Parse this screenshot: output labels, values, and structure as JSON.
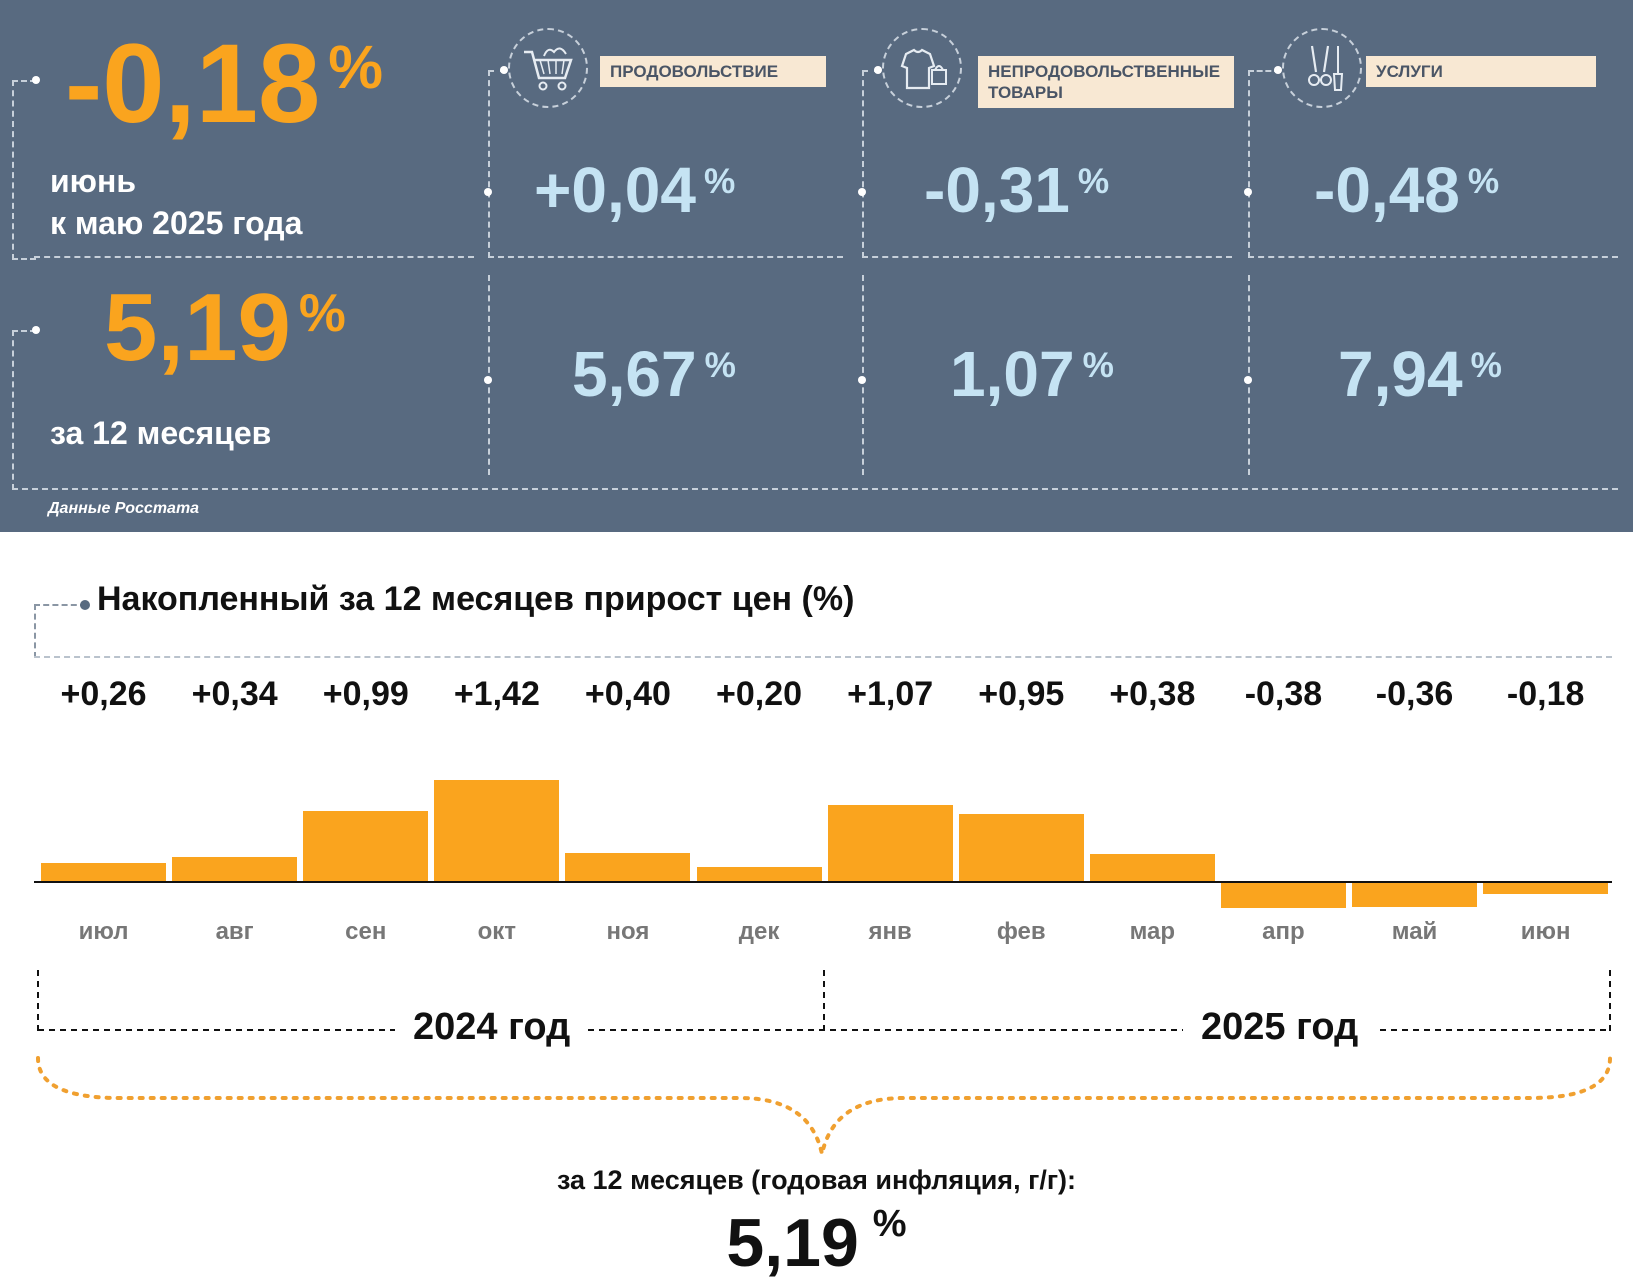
{
  "summary": {
    "monthly": {
      "value": "-0,18",
      "unit": "%",
      "label_line1": "июнь",
      "label_line2": "к маю 2025 года"
    },
    "annual": {
      "value": "5,19",
      "unit": "%",
      "label": "за 12 месяцев"
    },
    "categories": [
      {
        "icon": "shopping-cart-icon",
        "label": "ПРОДОВОЛЬСТВИЕ",
        "monthly": "+0,04",
        "annual": "5,67",
        "unit": "%"
      },
      {
        "icon": "clothing-bag-icon",
        "label": "НЕПРОДОВОЛЬСТВЕННЫЕ ТОВАРЫ",
        "monthly": "-0,31",
        "annual": "1,07",
        "unit": "%"
      },
      {
        "icon": "scissors-brush-icon",
        "label": "УСЛУГИ",
        "monthly": "-0,48",
        "annual": "7,94",
        "unit": "%"
      }
    ],
    "source": "Данные Росстата"
  },
  "chart_data": {
    "type": "bar",
    "title": "Накопленный за 12 месяцев прирост цен (%)",
    "categories": [
      "июл",
      "авг",
      "сен",
      "окт",
      "ноя",
      "дек",
      "янв",
      "фев",
      "мар",
      "апр",
      "май",
      "июн"
    ],
    "values": [
      0.26,
      0.34,
      0.99,
      1.42,
      0.4,
      0.2,
      1.07,
      0.95,
      0.38,
      -0.38,
      -0.36,
      -0.18
    ],
    "value_labels": [
      "+0,26",
      "+0,34",
      "+0,99",
      "+1,42",
      "+0,40",
      "+0,20",
      "+1,07",
      "+0,95",
      "+0,38",
      "-0,38",
      "-0,36",
      "-0,18"
    ],
    "bar_color": "#faa41e",
    "years": [
      "2024 год",
      "2025 год"
    ],
    "annual_caption": "за 12 месяцев (годовая инфляция, г/г):",
    "annual_value": "5,19",
    "annual_unit": "%"
  }
}
